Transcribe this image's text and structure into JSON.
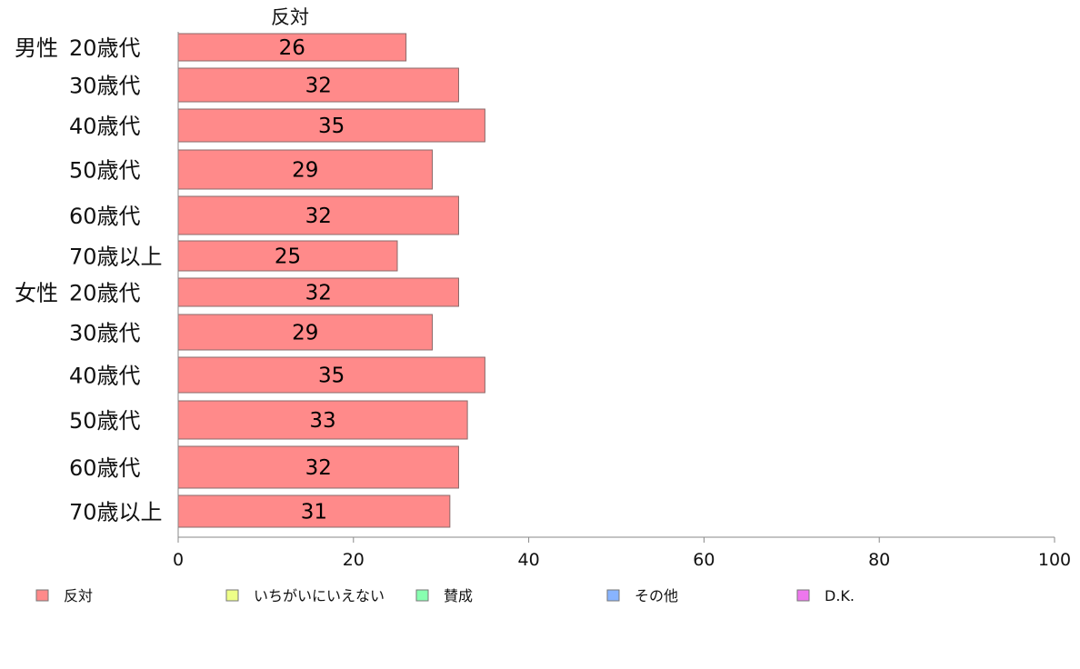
{
  "chart_data": {
    "type": "bar",
    "orientation": "horizontal",
    "stacked": true,
    "series_title": "反対",
    "groups": [
      {
        "label": "男性",
        "rows": [
          "20歳代",
          "30歳代",
          "40歳代",
          "50歳代",
          "60歳代",
          "70歳以上"
        ]
      },
      {
        "label": "女性",
        "rows": [
          "20歳代",
          "30歳代",
          "40歳代",
          "50歳代",
          "60歳代",
          "70歳以上"
        ]
      }
    ],
    "categories": [
      "20歳代",
      "30歳代",
      "40歳代",
      "50歳代",
      "60歳代",
      "70歳以上",
      "20歳代",
      "30歳代",
      "40歳代",
      "50歳代",
      "60歳代",
      "70歳以上"
    ],
    "series": [
      {
        "name": "反対",
        "color": "#ff8a8a",
        "values": [
          26,
          32,
          35,
          29,
          32,
          25,
          32,
          29,
          35,
          33,
          32,
          31
        ]
      }
    ],
    "legend": [
      {
        "name": "反対",
        "color": "#ff8a8a"
      },
      {
        "name": "いちがいにいえない",
        "color": "#eeff88"
      },
      {
        "name": "賛成",
        "color": "#88ffb0"
      },
      {
        "name": "その他",
        "color": "#88b4ff"
      },
      {
        "name": "D.K.",
        "color": "#ee77ee"
      }
    ],
    "legend_position": "bottom",
    "xlim": [
      0,
      100
    ],
    "xticks": [
      0,
      20,
      40,
      60,
      80,
      100
    ],
    "grid": false
  }
}
